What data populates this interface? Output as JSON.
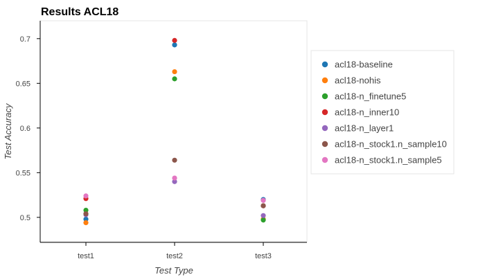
{
  "chart_data": {
    "type": "scatter",
    "title": "Results ACL18",
    "xlabel": "Test Type",
    "ylabel": "Test Accuracy",
    "categories": [
      "test1",
      "test2",
      "test3"
    ],
    "ylim": [
      0.472,
      0.72
    ],
    "yticks": [
      0.5,
      0.55,
      0.6,
      0.65,
      0.7
    ],
    "grid": false,
    "legend_position": "right",
    "series": [
      {
        "name": "acl18-baseline",
        "color": "#1f77b4",
        "values": [
          0.498,
          0.693,
          0.52
        ]
      },
      {
        "name": "acl18-nohis",
        "color": "#ff7f0e",
        "values": [
          0.494,
          0.663,
          0.498
        ]
      },
      {
        "name": "acl18-n_finetune5",
        "color": "#2ca02c",
        "values": [
          0.508,
          0.655,
          0.497
        ]
      },
      {
        "name": "acl18-n_inner10",
        "color": "#d62728",
        "values": [
          0.521,
          0.698,
          0.513
        ]
      },
      {
        "name": "acl18-n_layer1",
        "color": "#9467bd",
        "values": [
          0.503,
          0.54,
          0.502
        ]
      },
      {
        "name": "acl18-n_stock1.n_sample10",
        "color": "#8c564b",
        "values": [
          0.504,
          0.564,
          0.513
        ]
      },
      {
        "name": "acl18-n_stock1.n_sample5",
        "color": "#e377c2",
        "values": [
          0.524,
          0.544,
          0.519
        ]
      }
    ]
  }
}
